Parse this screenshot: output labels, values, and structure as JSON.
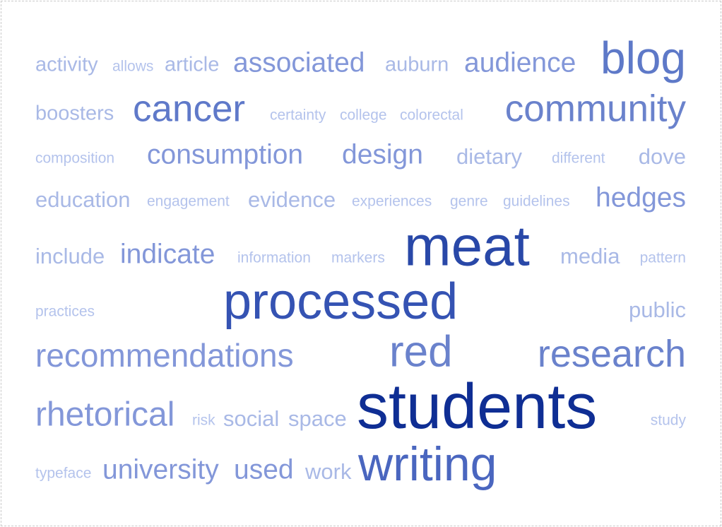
{
  "words": [
    {
      "text": "activity",
      "color": "#a9b9e6"
    },
    {
      "text": "allows",
      "color": "#b4c3ec"
    },
    {
      "text": "article",
      "color": "#a9b9e6"
    },
    {
      "text": "associated",
      "color": "#8397d9"
    },
    {
      "text": "auburn",
      "color": "#a9b9e6"
    },
    {
      "text": "audience",
      "color": "#8397d9"
    },
    {
      "text": "blog",
      "color": "#5e79c8"
    },
    {
      "text": "boosters",
      "color": "#a9b9e6"
    },
    {
      "text": "cancer",
      "color": "#5f79c9"
    },
    {
      "text": "certainty",
      "color": "#b4c3ec"
    },
    {
      "text": "college",
      "color": "#b4c3ec"
    },
    {
      "text": "colorectal",
      "color": "#b4c3ec"
    },
    {
      "text": "community",
      "color": "#6a82cc"
    },
    {
      "text": "composition",
      "color": "#b4c3ec"
    },
    {
      "text": "consumption",
      "color": "#8397d9"
    },
    {
      "text": "design",
      "color": "#8397d9"
    },
    {
      "text": "dietary",
      "color": "#a9b9e6"
    },
    {
      "text": "different",
      "color": "#b4c3ec"
    },
    {
      "text": "dove",
      "color": "#a9b9e6"
    },
    {
      "text": "education",
      "color": "#a9b9e6"
    },
    {
      "text": "engagement",
      "color": "#b4c3ec"
    },
    {
      "text": "evidence",
      "color": "#a9b9e6"
    },
    {
      "text": "experiences",
      "color": "#b4c3ec"
    },
    {
      "text": "genre",
      "color": "#b4c3ec"
    },
    {
      "text": "guidelines",
      "color": "#b4c3ec"
    },
    {
      "text": "hedges",
      "color": "#8397d9"
    },
    {
      "text": "include",
      "color": "#a9b9e6"
    },
    {
      "text": "indicate",
      "color": "#8397d9"
    },
    {
      "text": "information",
      "color": "#b4c3ec"
    },
    {
      "text": "markers",
      "color": "#b4c3ec"
    },
    {
      "text": "meat",
      "color": "#2948a8"
    },
    {
      "text": "media",
      "color": "#a9b9e6"
    },
    {
      "text": "pattern",
      "color": "#b4c3ec"
    },
    {
      "text": "practices",
      "color": "#b4c3ec"
    },
    {
      "text": "processed",
      "color": "#3553b3"
    },
    {
      "text": "public",
      "color": "#a9b9e6"
    },
    {
      "text": "recommendations",
      "color": "#8397d9"
    },
    {
      "text": "red",
      "color": "#6a82cc"
    },
    {
      "text": "research",
      "color": "#6a82cc"
    },
    {
      "text": "rhetorical",
      "color": "#8397d9"
    },
    {
      "text": "risk",
      "color": "#b4c3ec"
    },
    {
      "text": "social",
      "color": "#a9b9e6"
    },
    {
      "text": "space",
      "color": "#a9b9e6"
    },
    {
      "text": "students",
      "color": "#0f2e94"
    },
    {
      "text": "study",
      "color": "#b4c3ec"
    },
    {
      "text": "typeface",
      "color": "#b4c3ec"
    },
    {
      "text": "university",
      "color": "#8397d9"
    },
    {
      "text": "used",
      "color": "#8397d9"
    },
    {
      "text": "work",
      "color": "#a9b9e6"
    },
    {
      "text": "writing",
      "color": "#4a66bf"
    }
  ]
}
